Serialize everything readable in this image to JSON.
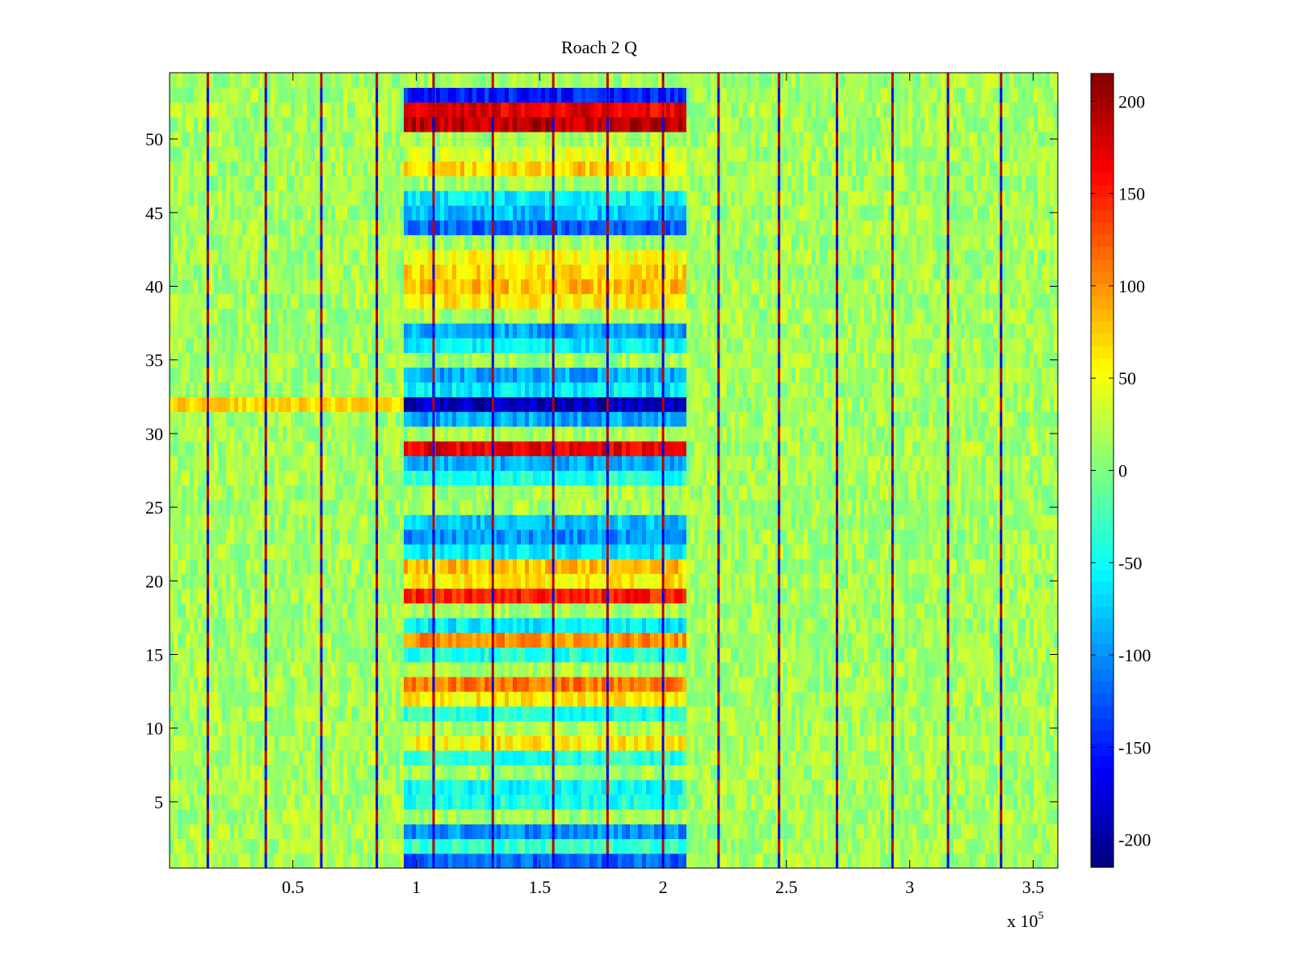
{
  "chart_data": {
    "type": "heatmap",
    "title": "Roach 2 Q",
    "xlabel": "",
    "ylabel": "",
    "x_multiplier_label": "x 10",
    "x_multiplier_exponent": "5",
    "x_multiplier": 100000,
    "xlim": [
      0,
      3.6
    ],
    "ylim": [
      0.5,
      54.5
    ],
    "x_ticks": [
      {
        "value": 0.5,
        "label": "0.5"
      },
      {
        "value": 1,
        "label": "1"
      },
      {
        "value": 1.5,
        "label": "1.5"
      },
      {
        "value": 2,
        "label": "2"
      },
      {
        "value": 2.5,
        "label": "2.5"
      },
      {
        "value": 3,
        "label": "3"
      },
      {
        "value": 3.5,
        "label": "3.5"
      }
    ],
    "y_ticks": [
      {
        "value": 5,
        "label": "5"
      },
      {
        "value": 10,
        "label": "10"
      },
      {
        "value": 15,
        "label": "15"
      },
      {
        "value": 20,
        "label": "20"
      },
      {
        "value": 25,
        "label": "25"
      },
      {
        "value": 30,
        "label": "30"
      },
      {
        "value": 35,
        "label": "35"
      },
      {
        "value": 40,
        "label": "40"
      },
      {
        "value": 45,
        "label": "45"
      },
      {
        "value": 50,
        "label": "50"
      }
    ],
    "colorbar": {
      "colormap": "jet",
      "range": [
        -215,
        215
      ],
      "ticks": [
        {
          "value": 200,
          "label": "200"
        },
        {
          "value": 150,
          "label": "150"
        },
        {
          "value": 100,
          "label": "100"
        },
        {
          "value": 50,
          "label": "50"
        },
        {
          "value": 0,
          "label": "0"
        },
        {
          "value": -50,
          "label": "-50"
        },
        {
          "value": -100,
          "label": "-100"
        },
        {
          "value": -150,
          "label": "-150"
        },
        {
          "value": -200,
          "label": "-200"
        }
      ]
    },
    "rows": 54,
    "background_value_range": [
      -10,
      40
    ],
    "spike_lines_x": [
      0.155,
      0.39,
      0.615,
      0.84,
      1.07,
      1.31,
      1.555,
      1.775,
      2.0,
      2.225,
      2.47,
      2.705,
      2.93,
      3.155,
      3.37
    ],
    "signal_x_range": [
      0.95,
      2.1
    ],
    "channel_bands": [
      {
        "row": 53,
        "value": -150
      },
      {
        "row": 52,
        "value": 170
      },
      {
        "row": 51,
        "value": 190
      },
      {
        "row": 49,
        "value": 40
      },
      {
        "row": 48,
        "value": 70
      },
      {
        "row": 46,
        "value": -60
      },
      {
        "row": 45,
        "value": -80
      },
      {
        "row": 44,
        "value": -120
      },
      {
        "row": 42,
        "value": 50
      },
      {
        "row": 41,
        "value": 70
      },
      {
        "row": 40,
        "value": 80
      },
      {
        "row": 39,
        "value": 60
      },
      {
        "row": 37,
        "value": -90
      },
      {
        "row": 36,
        "value": -60
      },
      {
        "row": 34,
        "value": -90
      },
      {
        "row": 33,
        "value": -60
      },
      {
        "row": 32,
        "value": -190
      },
      {
        "row": 31,
        "value": -90
      },
      {
        "row": 29,
        "value": 170
      },
      {
        "row": 28,
        "value": -90
      },
      {
        "row": 27,
        "value": -40
      },
      {
        "row": 24,
        "value": -80
      },
      {
        "row": 23,
        "value": -100
      },
      {
        "row": 22,
        "value": -60
      },
      {
        "row": 21,
        "value": 80
      },
      {
        "row": 20,
        "value": 60
      },
      {
        "row": 19,
        "value": 150
      },
      {
        "row": 17,
        "value": -60
      },
      {
        "row": 16,
        "value": 100
      },
      {
        "row": 15,
        "value": -40
      },
      {
        "row": 13,
        "value": 110
      },
      {
        "row": 12,
        "value": 60
      },
      {
        "row": 11,
        "value": -40
      },
      {
        "row": 9,
        "value": 60
      },
      {
        "row": 8,
        "value": -40
      },
      {
        "row": 6,
        "value": -50
      },
      {
        "row": 5,
        "value": -40
      },
      {
        "row": 3,
        "value": -100
      },
      {
        "row": 2,
        "value": -30
      },
      {
        "row": 1,
        "value": -120
      }
    ],
    "left_band": {
      "row": 32,
      "x_range": [
        0,
        0.95
      ],
      "value": 70
    }
  }
}
